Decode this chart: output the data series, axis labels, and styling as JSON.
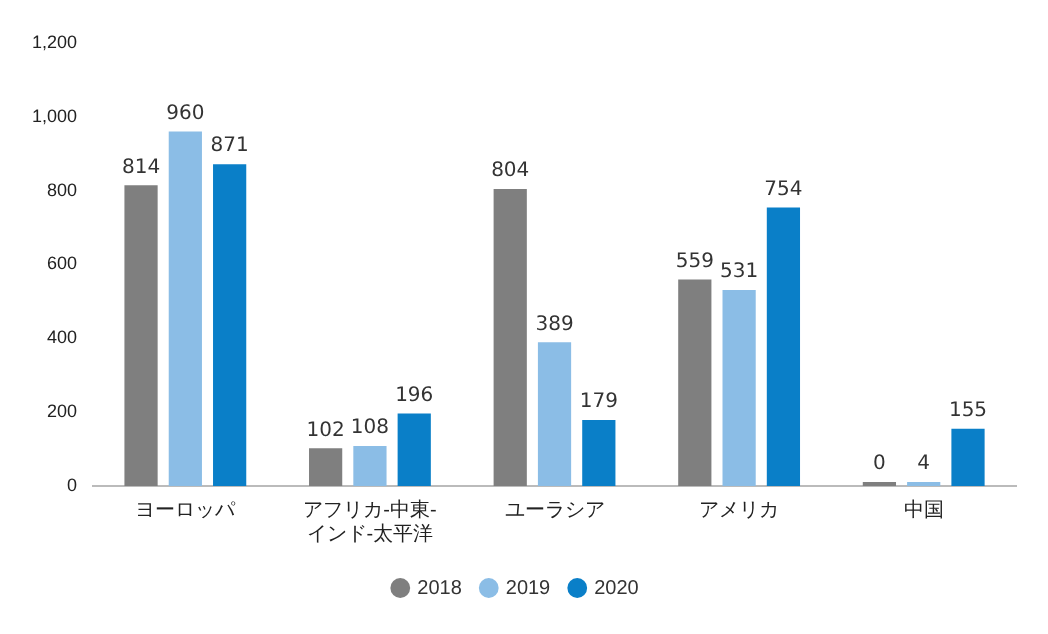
{
  "chart_data": {
    "type": "bar",
    "categories": [
      "ヨーロッパ",
      "アフリカ-中東-インド-太平洋",
      "ユーラシア",
      "アメリカ",
      "中国"
    ],
    "series": [
      {
        "name": "2018",
        "color": "#7f7f7f",
        "values": [
          814,
          102,
          804,
          559,
          0
        ]
      },
      {
        "name": "2019",
        "color": "#8bbde6",
        "values": [
          960,
          108,
          389,
          531,
          4
        ]
      },
      {
        "name": "2020",
        "color": "#0a7fc8",
        "values": [
          871,
          196,
          179,
          754,
          155
        ]
      }
    ],
    "ylim": [
      0,
      1200
    ],
    "yticks": [
      0,
      200,
      400,
      600,
      800,
      {
        "value": 1000,
        "label": "1,000"
      },
      {
        "value": 1200,
        "label": "1,200"
      }
    ],
    "grid": false,
    "legend": "bottom",
    "data_labels": true
  }
}
